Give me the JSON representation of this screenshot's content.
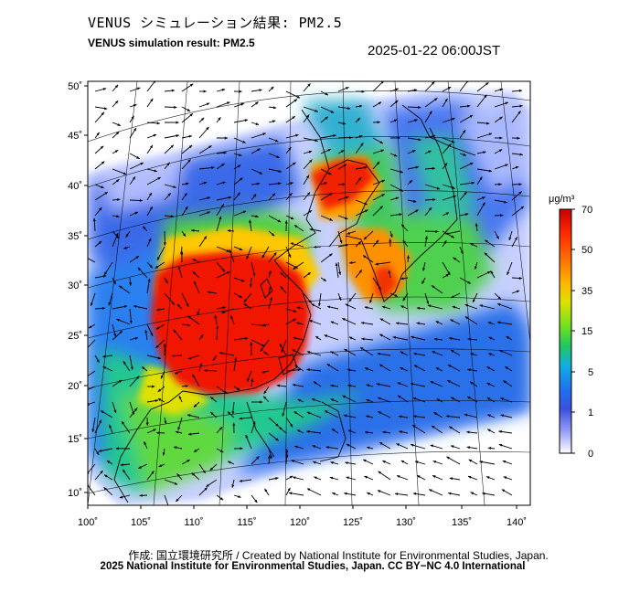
{
  "header": {
    "title_jp": "VENUS シミュレーション結果: PM2.5",
    "title_en": "VENUS simulation result: PM2.5",
    "timestamp": "2025-01-22 06:00JST"
  },
  "map": {
    "lon_ticks": [
      "100˚",
      "105˚",
      "110˚",
      "115˚",
      "120˚",
      "125˚",
      "130˚",
      "135˚",
      "140˚"
    ],
    "lat_ticks": [
      "50˚",
      "45˚",
      "40˚",
      "35˚",
      "30˚",
      "25˚",
      "20˚",
      "15˚",
      "10˚"
    ],
    "lon_range": [
      100,
      142
    ],
    "lat_range": [
      9,
      51
    ]
  },
  "colorbar": {
    "unit": "μg/m³",
    "labels": [
      "70",
      "50",
      "35",
      "15",
      "5",
      "1",
      "0"
    ],
    "colors": [
      "#d40000",
      "#ff3000",
      "#ff8c00",
      "#ffd200",
      "#aaf000",
      "#40d040",
      "#20c8a0",
      "#1e90ff",
      "#2060e0",
      "#6080ff",
      "#b8c0ff",
      "#ffffff"
    ]
  },
  "footer": {
    "credit_jp": "作成: 国立環境研究所 / Created by National Institute for Environmental Studies, Japan.",
    "copyright": "2025 National Institute for Environmental Studies, Japan. CC BY−NC 4.0 International"
  }
}
